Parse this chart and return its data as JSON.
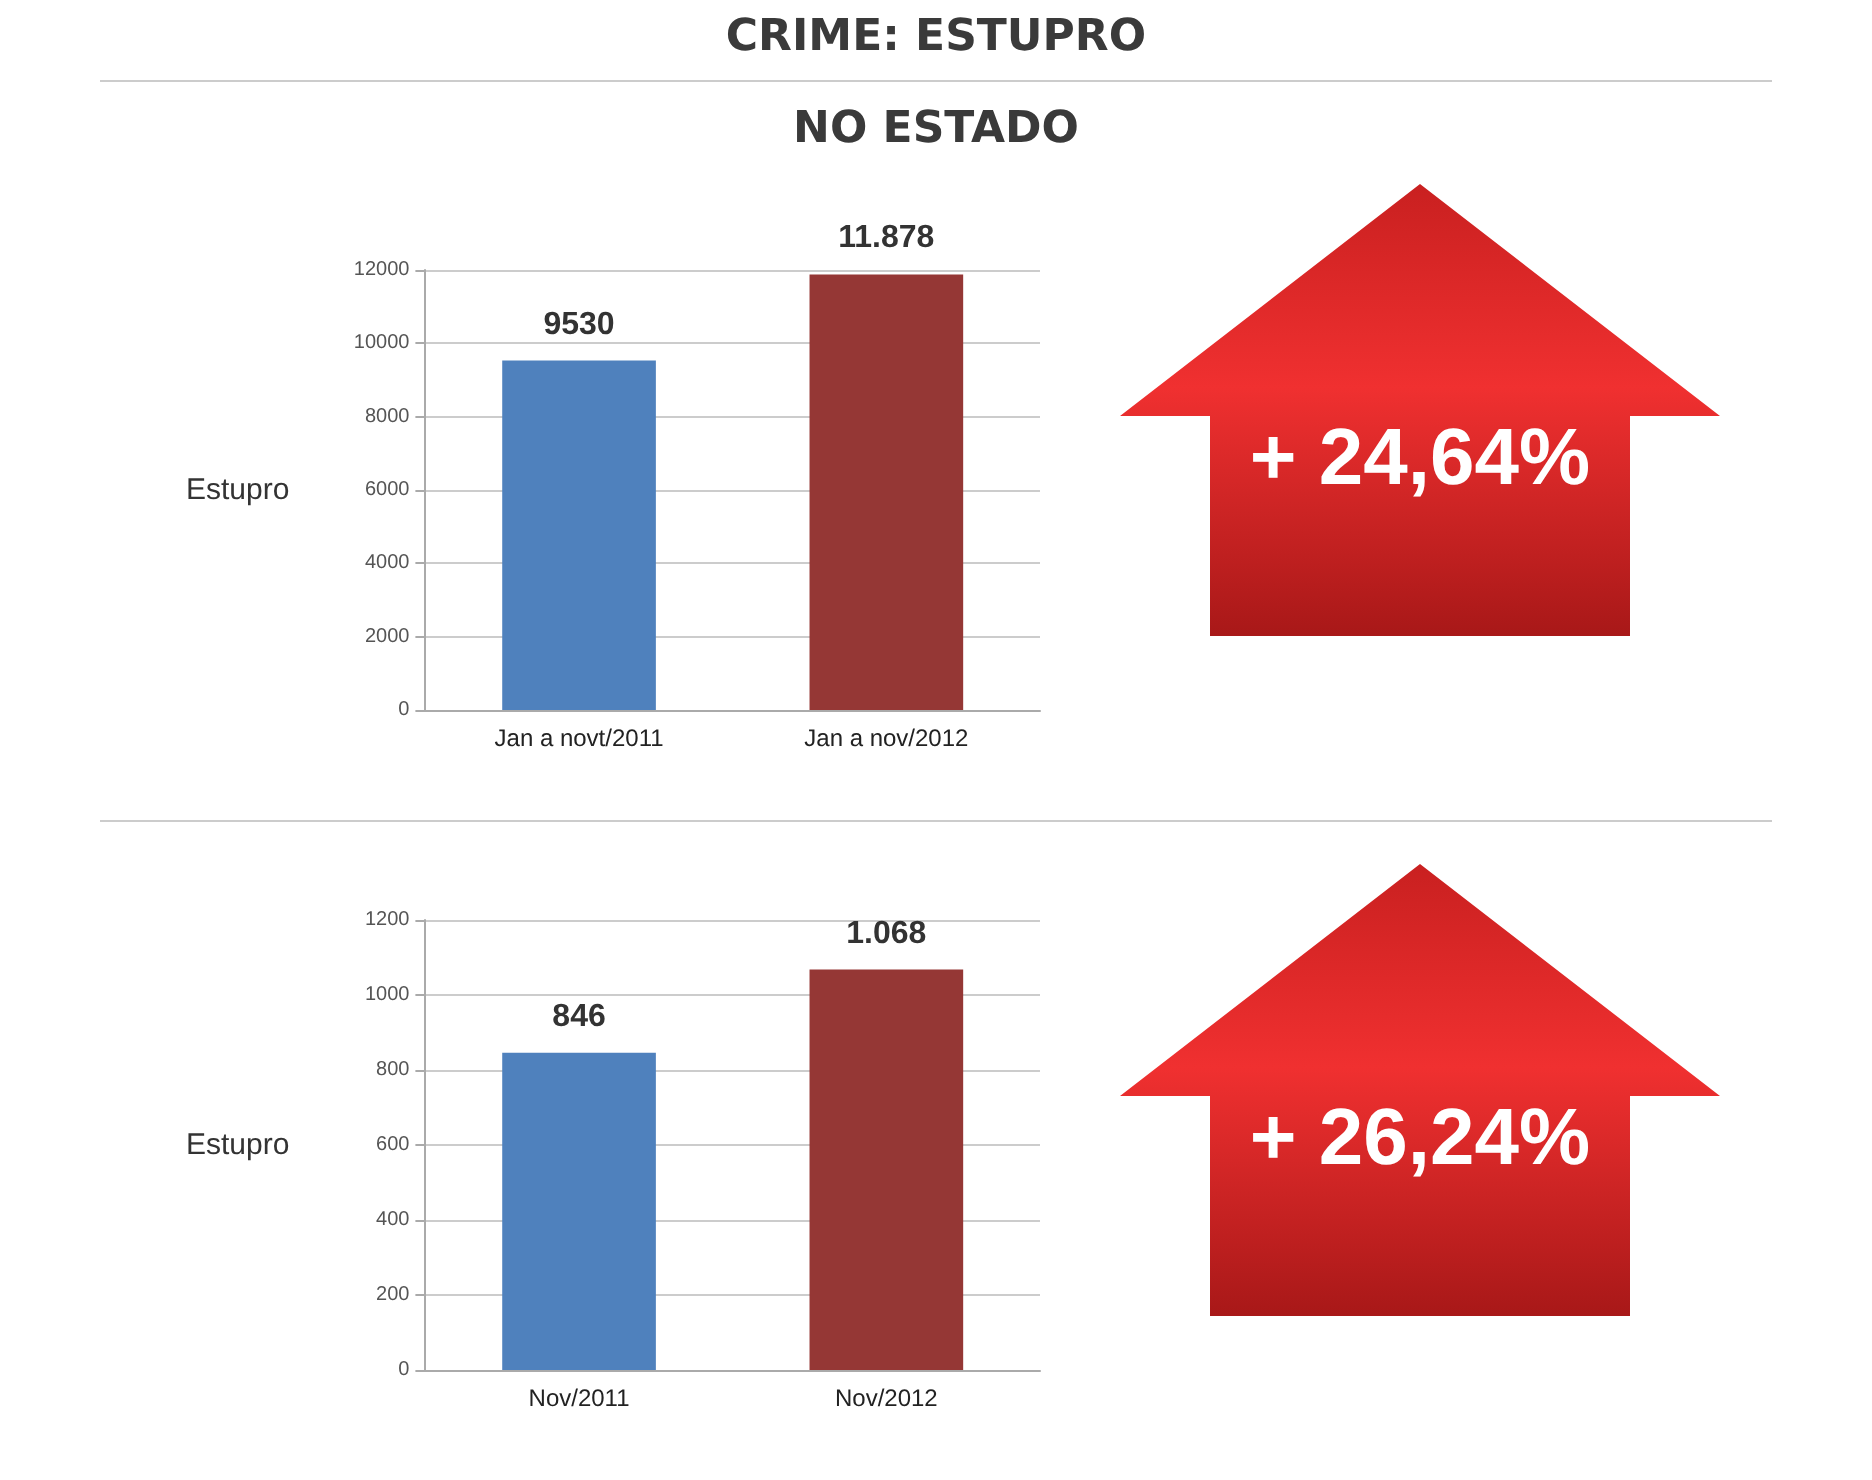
{
  "chart_data": [
    {
      "type": "bar",
      "title": "CRIME: ESTUPRO",
      "subtitle": "NO ESTADO",
      "ylabel": "Estupro",
      "categories": [
        "Jan a novt/2011",
        "Jan a nov/2012"
      ],
      "values": [
        9530,
        11878
      ],
      "value_labels": [
        "9530",
        "11.878"
      ],
      "colors": [
        "#4f81bd",
        "#953735"
      ],
      "ylim": [
        0,
        12000
      ],
      "yticks": [
        0,
        2000,
        4000,
        6000,
        8000,
        10000,
        12000
      ],
      "grid": "y",
      "annotations": [
        "+ 24,64%"
      ]
    },
    {
      "type": "bar",
      "ylabel": "Estupro",
      "categories": [
        "Nov/2011",
        "Nov/2012"
      ],
      "values": [
        846,
        1068
      ],
      "value_labels": [
        "846",
        "1.068"
      ],
      "colors": [
        "#4f81bd",
        "#953735"
      ],
      "ylim": [
        0,
        1200
      ],
      "yticks": [
        0,
        200,
        400,
        600,
        800,
        1000,
        1200
      ],
      "grid": "y",
      "annotations": [
        "+ 26,24%"
      ]
    }
  ]
}
